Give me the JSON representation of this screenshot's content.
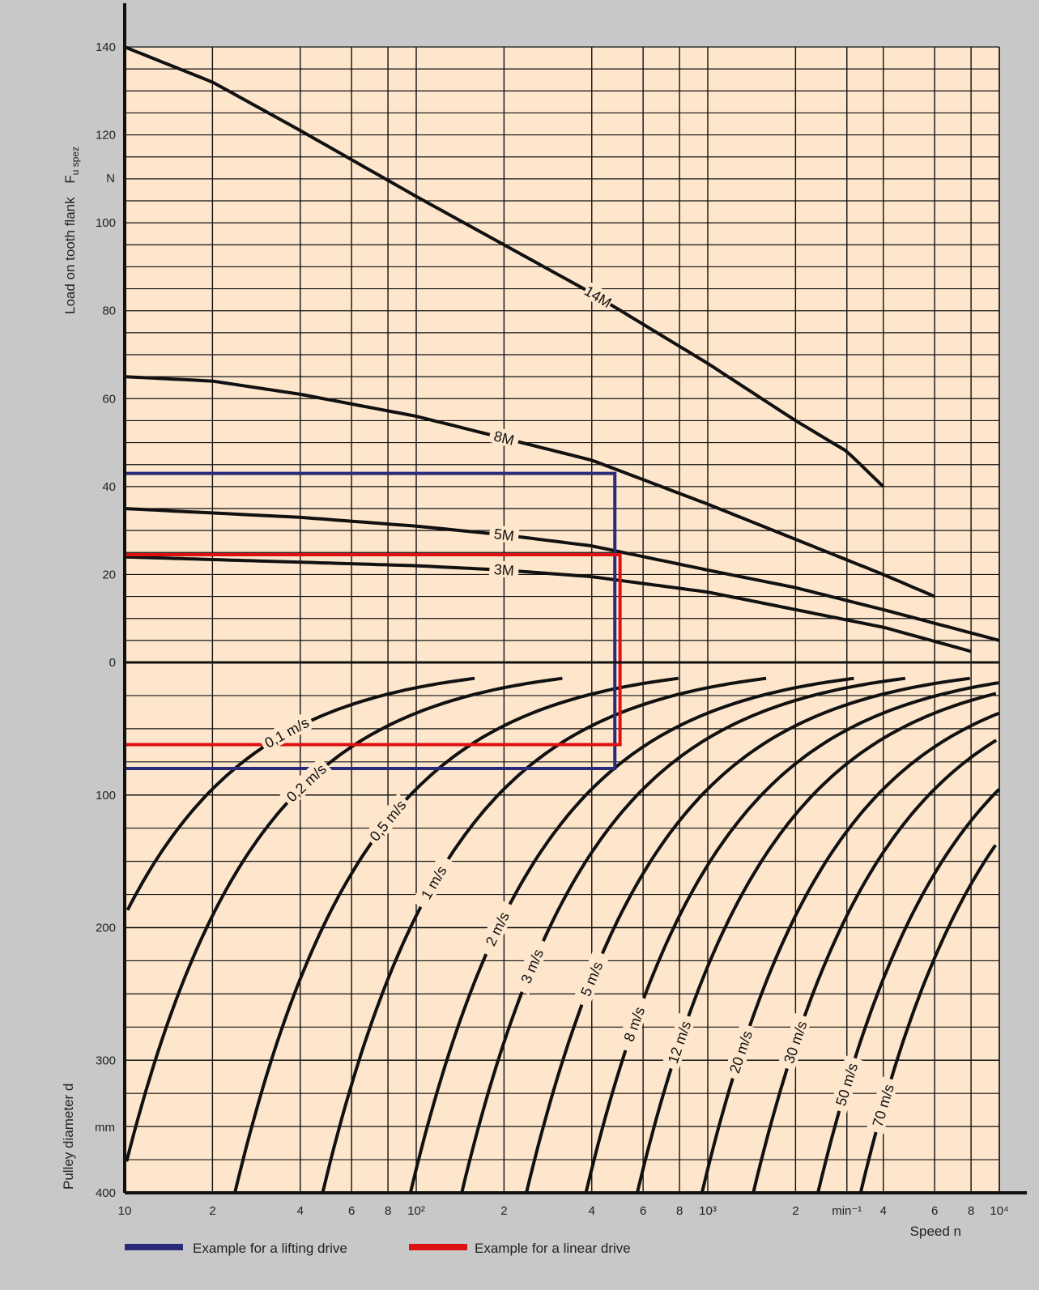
{
  "colors": {
    "background": "#c8c8c8",
    "plot": "#fde6cc",
    "grid": "#111111",
    "curve": "#111111",
    "lifting": "#2a2a7a",
    "linear": "#dd1111"
  },
  "chart_data": {
    "type": "line",
    "x_scale": "log",
    "xlabel": "Speed n",
    "x_unit": "min⁻¹",
    "xlim": [
      10,
      10000
    ],
    "x_ticks": [
      {
        "value": 10,
        "label": "10"
      },
      {
        "value": 20,
        "label": "2"
      },
      {
        "value": 40,
        "label": "4"
      },
      {
        "value": 60,
        "label": "6"
      },
      {
        "value": 80,
        "label": "8"
      },
      {
        "value": 100,
        "label": "10²"
      },
      {
        "value": 200,
        "label": "2"
      },
      {
        "value": 400,
        "label": "4"
      },
      {
        "value": 600,
        "label": "6"
      },
      {
        "value": 800,
        "label": "8"
      },
      {
        "value": 1000,
        "label": "10³"
      },
      {
        "value": 2000,
        "label": "2"
      },
      {
        "value": 3000,
        "label": "min⁻¹"
      },
      {
        "value": 4000,
        "label": "4"
      },
      {
        "value": 6000,
        "label": "6"
      },
      {
        "value": 8000,
        "label": "8"
      },
      {
        "value": 10000,
        "label": "10⁴"
      }
    ],
    "upper": {
      "ylabel": "Load on tooth flank",
      "ylabel_symbol": "F",
      "ylabel_sub": "u spez",
      "y_unit": "N",
      "ylim": [
        0,
        140
      ],
      "y_ticks": [
        0,
        20,
        40,
        60,
        80,
        100,
        120,
        140
      ],
      "series": [
        {
          "name": "14M",
          "label_at": 420,
          "points": [
            [
              10,
              140
            ],
            [
              20,
              132
            ],
            [
              40,
              121
            ],
            [
              100,
              106
            ],
            [
              200,
              95
            ],
            [
              400,
              84
            ],
            [
              1000,
              68
            ],
            [
              2000,
              55
            ],
            [
              3000,
              48
            ],
            [
              4000,
              40
            ]
          ]
        },
        {
          "name": "8M",
          "label_at": 200,
          "points": [
            [
              10,
              65
            ],
            [
              20,
              64
            ],
            [
              40,
              61
            ],
            [
              100,
              56
            ],
            [
              200,
              51
            ],
            [
              400,
              46
            ],
            [
              1000,
              36
            ],
            [
              2000,
              28
            ],
            [
              4000,
              20
            ],
            [
              6000,
              15
            ]
          ]
        },
        {
          "name": "5M",
          "label_at": 200,
          "points": [
            [
              10,
              35
            ],
            [
              40,
              33
            ],
            [
              100,
              31
            ],
            [
              200,
              29
            ],
            [
              400,
              26.5
            ],
            [
              1000,
              21
            ],
            [
              2000,
              17
            ],
            [
              4000,
              12
            ],
            [
              10000,
              5
            ]
          ]
        },
        {
          "name": "3M",
          "label_at": 200,
          "points": [
            [
              10,
              24
            ],
            [
              100,
              22
            ],
            [
              200,
              21
            ],
            [
              400,
              19.5
            ],
            [
              1000,
              16
            ],
            [
              2000,
              12
            ],
            [
              4000,
              8
            ],
            [
              8000,
              2.5
            ]
          ]
        }
      ]
    },
    "lower": {
      "ylabel": "Pulley diameter d",
      "y_unit": "mm",
      "y_scale": "log",
      "ylim": [
        20,
        400
      ],
      "y_ticks": [
        100,
        200,
        300,
        400
      ],
      "series": [
        {
          "name": "0,1 m/s",
          "speed": 0.1,
          "label_at": 36,
          "n_end": 100,
          "d_end": 15
        },
        {
          "name": "0,2 m/s",
          "speed": 0.2,
          "label_at": 42,
          "n_end": 200,
          "d_end": 15
        },
        {
          "name": "0,5 m/s",
          "speed": 0.5,
          "label_at": 80,
          "n_end": 460,
          "d_end": 15
        },
        {
          "name": "1 m/s",
          "speed": 1,
          "label_at": 115,
          "n_end": 600,
          "d_end": 15
        },
        {
          "name": "2 m/s",
          "speed": 2,
          "label_at": 190,
          "n_end": 1000,
          "d_end": 15
        },
        {
          "name": "3 m/s",
          "speed": 3,
          "label_at": 250,
          "n_end": 2000,
          "d_end": 15
        },
        {
          "name": "5 m/s",
          "speed": 5,
          "label_at": 400,
          "n_end": 2500,
          "d_end": 15
        },
        {
          "name": "8 m/s",
          "speed": 8,
          "label_at": 560,
          "n_end": 3000,
          "d_end": 15
        },
        {
          "name": "12 m/s",
          "speed": 12,
          "label_at": 800,
          "n_end": 5000,
          "d_end": 15
        },
        {
          "name": "20 m/s",
          "speed": 20,
          "label_at": 1300,
          "n_end": 7000,
          "d_end": 15
        },
        {
          "name": "30 m/s",
          "speed": 30,
          "label_at": 2000,
          "n_end": 10000,
          "d_end": 15
        },
        {
          "name": "50 m/s",
          "speed": 50,
          "label_at": 3000,
          "n_end": 10000,
          "d_end": 15
        },
        {
          "name": "70 m/s",
          "speed": 70,
          "label_at": 4000,
          "n_end": 10000,
          "d_end": 15
        }
      ]
    },
    "examples": [
      {
        "name": "Example for a lifting drive",
        "color": "#2a2a7a",
        "load": 43,
        "speed_n": 480,
        "diameter": 80
      },
      {
        "name": "Example for a linear drive",
        "color": "#dd1111",
        "load": 24.5,
        "speed_n": 500,
        "diameter": 62
      }
    ],
    "legend": "bottom-left",
    "grid": true
  }
}
